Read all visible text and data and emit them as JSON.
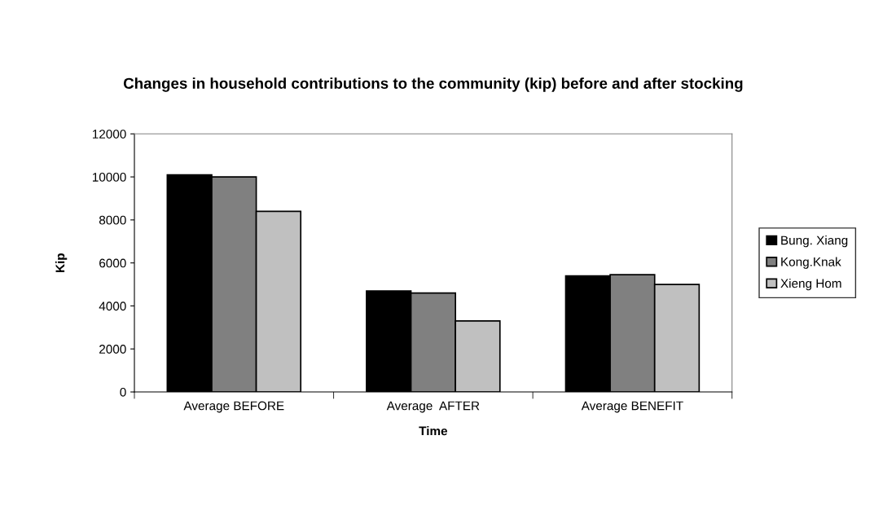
{
  "chart_data": {
    "type": "bar",
    "title": "Changes in household contributions to the community (kip) before and after stocking",
    "xlabel": "Time",
    "ylabel": "Kip",
    "categories": [
      "Average BEFORE",
      "Average  AFTER",
      "Average BENEFIT"
    ],
    "series": [
      {
        "name": "Bung. Xiang",
        "color": "#000000",
        "values": [
          10100,
          4700,
          5400
        ]
      },
      {
        "name": "Kong.Knak",
        "color": "#808080",
        "values": [
          10000,
          4600,
          5450
        ]
      },
      {
        "name": "Xieng Hom",
        "color": "#c0c0c0",
        "values": [
          8400,
          3300,
          5000
        ]
      }
    ],
    "ylim": [
      0,
      12000
    ],
    "yticks": [
      0,
      2000,
      4000,
      6000,
      8000,
      10000,
      12000
    ],
    "grid": false,
    "legend": "right"
  }
}
